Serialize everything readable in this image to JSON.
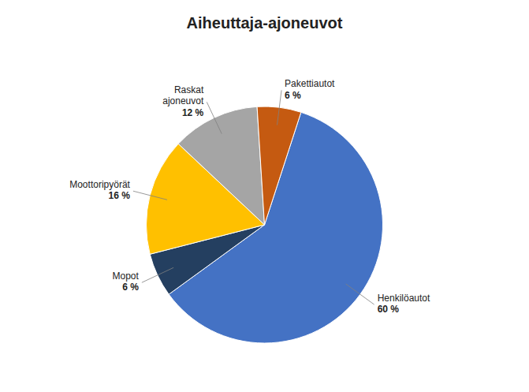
{
  "chart_data": {
    "type": "pie",
    "title": "Aiheuttaja-ajoneuvot",
    "categories": [
      "Henkilöautot",
      "Mopot",
      "Moottoripyörät",
      "Raskat\najoneuvot",
      "Pakettiautot"
    ],
    "values": [
      60,
      6,
      16,
      12,
      6
    ],
    "value_labels": [
      "60 %",
      "6 %",
      "16 %",
      "12 %",
      "6 %"
    ],
    "colors": [
      "#4472C4",
      "#243F60",
      "#FFC000",
      "#A5A5A5",
      "#C55A11"
    ],
    "data_labels": true
  }
}
